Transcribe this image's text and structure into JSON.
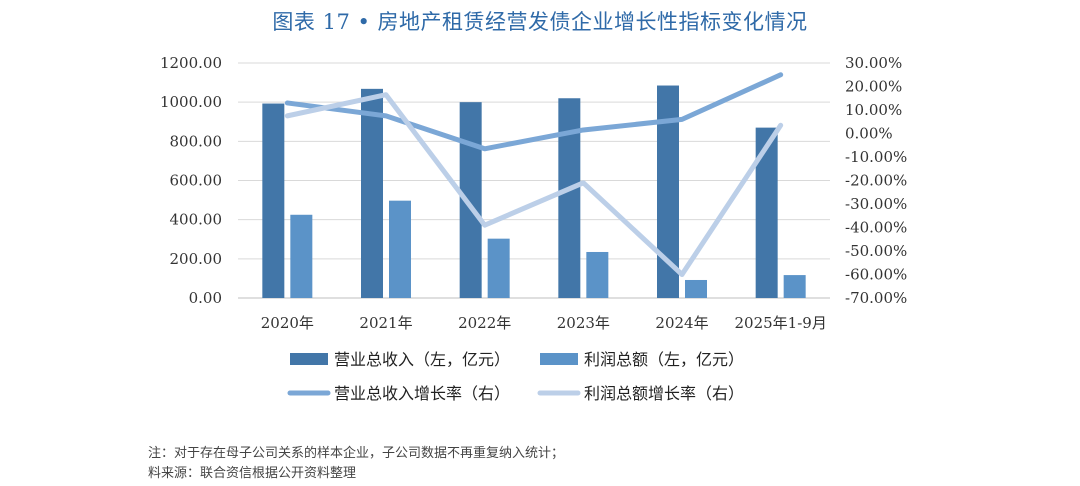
{
  "title": "图表 17 •   房地产租赁经营发债企业增长性指标变化情况",
  "chart_data": {
    "type": "bar",
    "categories": [
      "2020年",
      "2021年",
      "2022年",
      "2023年",
      "2024年",
      "2025年1-9月"
    ],
    "y_left": {
      "min": 0,
      "max": 1200,
      "step": 200,
      "ticks": [
        "0.00",
        "200.00",
        "400.00",
        "600.00",
        "800.00",
        "1000.00",
        "1200.00"
      ]
    },
    "y_right": {
      "min": -70,
      "max": 30,
      "step": 10,
      "ticks": [
        "-70.00%",
        "-60.00%",
        "-50.00%",
        "-40.00%",
        "-30.00%",
        "-20.00%",
        "-10.00%",
        "0.00%",
        "10.00%",
        "20.00%",
        "30.00%"
      ]
    },
    "series": [
      {
        "name": "营业总收入（左，亿元）",
        "kind": "bar",
        "axis": "left",
        "color": "#4276a8",
        "values": [
          993,
          1068,
          1000,
          1020,
          1085,
          870
        ]
      },
      {
        "name": "利润总额（左，亿元）",
        "kind": "bar",
        "axis": "left",
        "color": "#5b93c8",
        "values": [
          425,
          497,
          303,
          235,
          92,
          117
        ]
      },
      {
        "name": "营业总收入增长率（右）",
        "kind": "line",
        "axis": "right",
        "color": "#7ba7d6",
        "values": [
          13,
          7.5,
          -6.5,
          1.5,
          6,
          25
        ]
      },
      {
        "name": "利润总额增长率（右）",
        "kind": "line",
        "axis": "right",
        "color": "#bccfe8",
        "values": [
          7.5,
          16.5,
          -39,
          -21,
          -60,
          3.5
        ]
      }
    ]
  },
  "notes": [
    "注：对于存在母子公司关系的样本企业，子公司数据不再重复纳入统计；",
    "料来源：联合资信根据公开资料整理"
  ]
}
